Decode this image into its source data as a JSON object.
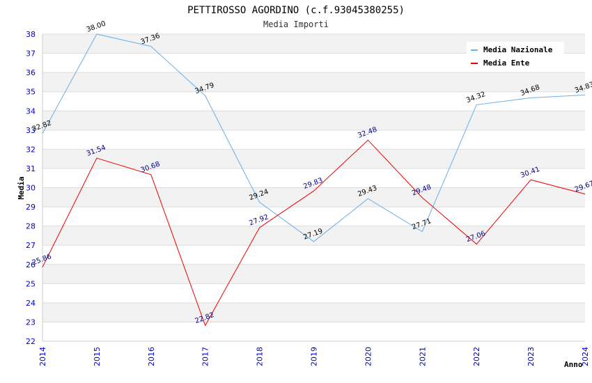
{
  "chart_data": {
    "type": "line",
    "title": "PETTIROSSO AGORDINO (c.f.93045380255)",
    "subtitle": "Media Importi",
    "xlabel": "Anno",
    "ylabel": "Media",
    "ylim": [
      22,
      38
    ],
    "yticks": [
      "22",
      "23",
      "24",
      "25",
      "26",
      "27",
      "28",
      "29",
      "30",
      "31",
      "32",
      "33",
      "34",
      "35",
      "36",
      "37",
      "38"
    ],
    "x": [
      "2014",
      "2015",
      "2016",
      "2017",
      "2018",
      "2019",
      "2020",
      "2021",
      "2022",
      "2023",
      "2024"
    ],
    "grid": true,
    "legend_position": "top-right",
    "series": [
      {
        "name": "Media Nazionale",
        "color": "#6aaee6",
        "label_color": "#000000",
        "values": [
          32.82,
          38.0,
          37.36,
          34.79,
          29.24,
          27.19,
          29.43,
          27.71,
          34.32,
          34.68,
          34.83
        ],
        "labels": [
          "32.82",
          "38.00",
          "37.36",
          "34.79",
          "29.24",
          "27.19",
          "29.43",
          "27.71",
          "34.32",
          "34.68",
          "34.83"
        ]
      },
      {
        "name": "Media Ente",
        "color": "#ee0000",
        "label_color": "#000080",
        "values": [
          25.86,
          31.54,
          30.68,
          22.82,
          27.92,
          29.83,
          32.48,
          29.48,
          27.06,
          30.41,
          29.67
        ],
        "labels": [
          "25.86",
          "31.54",
          "30.68",
          "22.82",
          "27.92",
          "29.83",
          "32.48",
          "29.48",
          "27.06",
          "30.41",
          "29.67"
        ]
      }
    ]
  }
}
